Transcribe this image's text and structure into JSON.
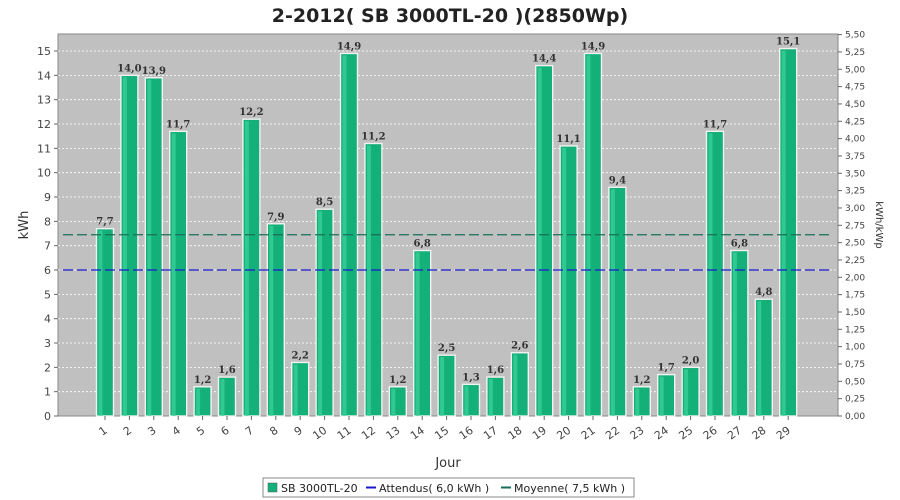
{
  "chart_data": {
    "type": "bar",
    "title": "2-2012( SB 3000TL-20 )(2850Wp)",
    "xlabel": "Jour",
    "ylabel": "kWh",
    "ylabel_right": "kWh/kWp",
    "ylim": [
      0,
      15.7
    ],
    "ylim_right": [
      0,
      5.5
    ],
    "yticks": [
      0,
      1,
      2,
      3,
      4,
      5,
      6,
      7,
      8,
      9,
      10,
      11,
      12,
      13,
      14,
      15
    ],
    "yticks_right": [
      "0,00",
      "0,25",
      "0,50",
      "0,75",
      "1,00",
      "1,25",
      "1,50",
      "1,75",
      "2,00",
      "2,25",
      "2,50",
      "2,75",
      "3,00",
      "3,25",
      "3,50",
      "3,75",
      "4,00",
      "4,25",
      "4,50",
      "4,75",
      "5,00",
      "5,25",
      "5,50"
    ],
    "categories": [
      "1",
      "2",
      "3",
      "4",
      "5",
      "6",
      "7",
      "8",
      "9",
      "10",
      "11",
      "12",
      "13",
      "14",
      "15",
      "16",
      "17",
      "18",
      "19",
      "20",
      "21",
      "22",
      "23",
      "24",
      "25",
      "26",
      "27",
      "28",
      "29"
    ],
    "values": [
      7.7,
      14.0,
      13.9,
      11.7,
      1.2,
      1.6,
      12.2,
      7.9,
      2.2,
      8.5,
      14.9,
      11.2,
      1.2,
      6.8,
      2.5,
      1.3,
      1.6,
      2.6,
      14.4,
      11.1,
      14.9,
      9.4,
      1.2,
      1.7,
      2.0,
      11.7,
      6.8,
      4.8,
      15.1
    ],
    "value_labels": [
      "7,7",
      "14,0",
      "13,9",
      "11,7",
      "1,2",
      "1,6",
      "12,2",
      "7,9",
      "2,2",
      "8,5",
      "14,9",
      "11,2",
      "1,2",
      "6,8",
      "2,5",
      "1,3",
      "1,6",
      "2,6",
      "14,4",
      "11,1",
      "14,9",
      "9,4",
      "1,2",
      "1,7",
      "2,0",
      "11,7",
      "6,8",
      "4,8",
      "15,1"
    ],
    "series_name": "SB 3000TL-20",
    "reference_lines": [
      {
        "name": "Attendus( 6,0 kWh )",
        "value": 6.0,
        "color": "#1a1acc"
      },
      {
        "name": "Moyenne( 7,5 kWh )",
        "value": 7.45,
        "color": "#1a6e5a"
      }
    ],
    "bar_color": "#13b07a",
    "grid": true,
    "legend_position": "bottom"
  }
}
